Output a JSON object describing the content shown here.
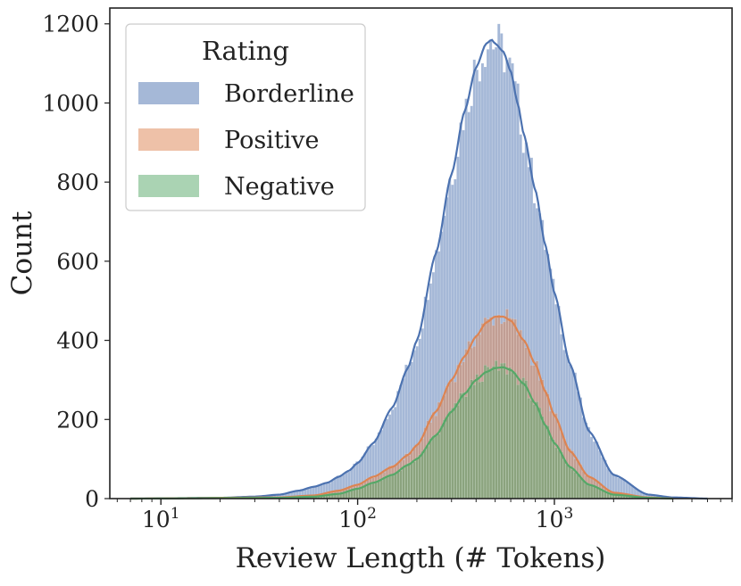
{
  "chart_data": {
    "type": "histogram",
    "stacked": false,
    "x_scale": "log",
    "xlabel": "Review Length (# Tokens)",
    "ylabel": "Count",
    "xlim": [
      5.5,
      8000
    ],
    "ylim": [
      0,
      1240
    ],
    "x_ticks": [
      {
        "value": 10,
        "label": "10^1"
      },
      {
        "value": 100,
        "label": "10^2"
      },
      {
        "value": 1000,
        "label": "10^3"
      }
    ],
    "y_ticks": [
      0,
      200,
      400,
      600,
      800,
      1000,
      1200
    ],
    "grid": false,
    "legend": {
      "title": "Rating",
      "placement": "top-left",
      "items": [
        "Borderline",
        "Positive",
        "Negative"
      ]
    },
    "series": [
      {
        "name": "Borderline",
        "color": "#4c72b0",
        "kde": {
          "x": [
            7,
            20,
            30,
            40,
            50,
            60,
            70,
            80,
            90,
            100,
            120,
            150,
            180,
            200,
            250,
            300,
            350,
            400,
            450,
            480,
            500,
            550,
            600,
            650,
            700,
            800,
            900,
            1000,
            1200,
            1500,
            2000,
            3000,
            4000,
            6000
          ],
          "y": [
            0,
            2,
            5,
            10,
            20,
            30,
            40,
            55,
            70,
            90,
            140,
            230,
            330,
            400,
            620,
            820,
            980,
            1090,
            1150,
            1160,
            1150,
            1130,
            1080,
            1000,
            920,
            780,
            640,
            520,
            340,
            170,
            60,
            10,
            3,
            0
          ]
        }
      },
      {
        "name": "Positive",
        "color": "#dd8452",
        "kde": {
          "x": [
            7,
            40,
            60,
            80,
            100,
            120,
            150,
            180,
            200,
            250,
            300,
            350,
            400,
            450,
            500,
            550,
            600,
            700,
            800,
            900,
            1000,
            1200,
            1500,
            2000,
            3000,
            4000
          ],
          "y": [
            0,
            3,
            8,
            20,
            35,
            55,
            80,
            110,
            135,
            220,
            300,
            360,
            410,
            445,
            460,
            460,
            450,
            400,
            340,
            270,
            210,
            120,
            55,
            15,
            3,
            0
          ]
        }
      },
      {
        "name": "Negative",
        "color": "#55a868",
        "kde": {
          "x": [
            7,
            40,
            60,
            80,
            100,
            120,
            150,
            180,
            200,
            250,
            300,
            350,
            400,
            450,
            500,
            550,
            600,
            700,
            800,
            900,
            1000,
            1200,
            1500,
            2000,
            3000,
            4000
          ],
          "y": [
            0,
            2,
            5,
            12,
            25,
            40,
            60,
            85,
            100,
            160,
            220,
            265,
            300,
            320,
            330,
            332,
            325,
            290,
            240,
            185,
            140,
            80,
            35,
            10,
            2,
            0
          ]
        }
      }
    ]
  }
}
